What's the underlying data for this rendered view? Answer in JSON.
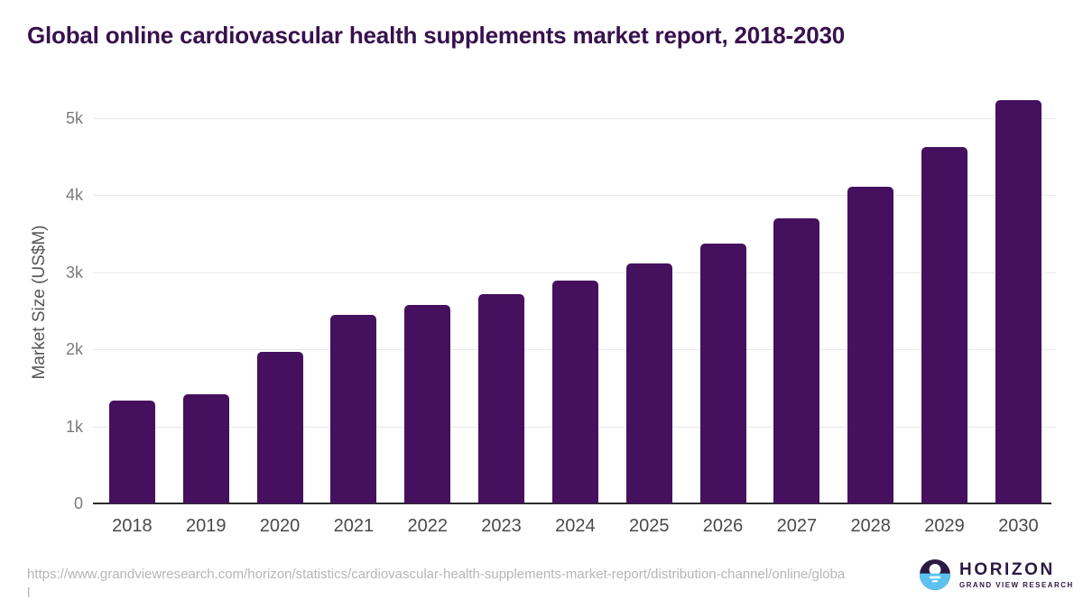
{
  "title": "Global online cardiovascular health supplements market report, 2018-2030",
  "chart_data": {
    "type": "bar",
    "title": "Global online cardiovascular health supplements market report, 2018-2030",
    "categories": [
      "2018",
      "2019",
      "2020",
      "2021",
      "2022",
      "2023",
      "2024",
      "2025",
      "2026",
      "2027",
      "2028",
      "2029",
      "2030"
    ],
    "values": [
      1330,
      1410,
      1960,
      2450,
      2570,
      2710,
      2890,
      3110,
      3370,
      3700,
      4110,
      4620,
      5230
    ],
    "series_name": "Market Size",
    "xlabel": "",
    "ylabel": "Market Size (US$M)",
    "ylim": [
      0,
      5500
    ],
    "ytick_values": [
      0,
      1000,
      2000,
      3000,
      4000,
      5000
    ],
    "ytick_labels": [
      "0",
      "1k",
      "2k",
      "3k",
      "4k",
      "5k"
    ],
    "grid": true,
    "legend_position": "none",
    "bar_color": "#45105e"
  },
  "colors": {
    "title_text": "#38114e",
    "bar": "#45105e",
    "gridline": "#e8e8e8",
    "axis_line": "#2b2b2b",
    "ytick_label": "#7a7a7a",
    "xtick_label": "#4a4a4a",
    "url_text": "#b6b6b6",
    "logo_purple": "#2b1a43",
    "logo_blue": "#5bc2ee"
  },
  "footer": {
    "source_url": "https://www.grandviewresearch.com/horizon/statistics/cardiovascular-health-supplements-market-report/distribution-channel/online/global",
    "logo": {
      "name": "HORIZON",
      "subtitle": "GRAND VIEW RESEARCH"
    }
  }
}
